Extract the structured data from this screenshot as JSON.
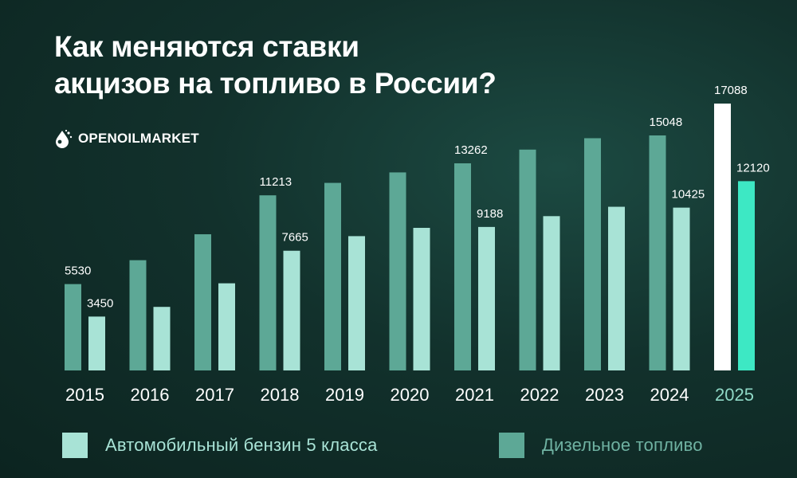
{
  "title": [
    "Как меняются ставки",
    "акцизов на топливо в России?"
  ],
  "brand": {
    "name": "OPENOILMARKET",
    "icon": "oil-drop-logo-icon"
  },
  "colors": {
    "gasoline": "#a8e3d6",
    "diesel": "#5da896",
    "gasoline_highlight": "#ffffff",
    "diesel_highlight": "#3de8c4",
    "year_label": "#ffffff",
    "year_label_highlight": "#8fd8c6",
    "value_label": "#ffffff"
  },
  "chart_data": {
    "type": "bar",
    "title": "Как меняются ставки акцизов на топливо в России?",
    "categories": [
      "2015",
      "2016",
      "2017",
      "2018",
      "2019",
      "2020",
      "2021",
      "2022",
      "2023",
      "2024",
      "2025"
    ],
    "highlight_category": "2025",
    "ylim": [
      0,
      18000
    ],
    "grid": false,
    "legend_placement": "bottom",
    "series": [
      {
        "name": "Дизельное топливо",
        "color": "#5da896",
        "values": [
          5530,
          7060,
          8720,
          11213,
          12010,
          12680,
          13262,
          14140,
          14870,
          15048,
          17088
        ],
        "labeled": [
          true,
          false,
          false,
          true,
          false,
          false,
          true,
          false,
          false,
          true,
          true
        ]
      },
      {
        "name": "Автомобильный бензин 5 класса",
        "color": "#a8e3d6",
        "values": [
          3450,
          4070,
          5580,
          7665,
          8600,
          9130,
          9188,
          9880,
          10480,
          10425,
          12120
        ],
        "labeled": [
          true,
          false,
          false,
          true,
          false,
          false,
          true,
          false,
          false,
          true,
          true
        ]
      }
    ]
  },
  "legend": {
    "gasoline_label": "Автомобильный бензин 5 класса",
    "diesel_label": "Дизельное топливо"
  }
}
